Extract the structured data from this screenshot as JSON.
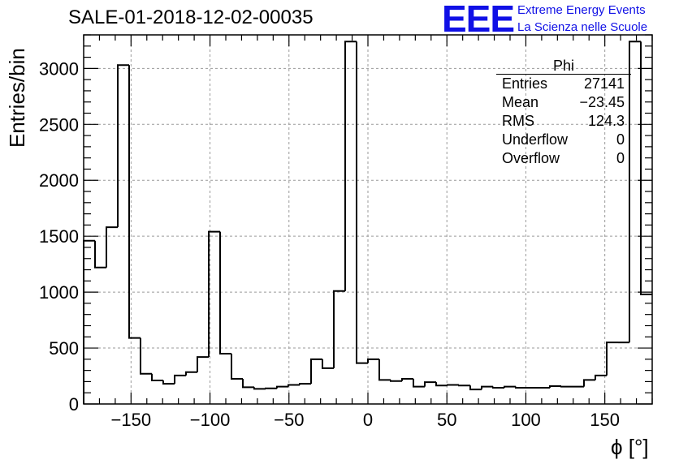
{
  "chart_data": {
    "type": "bar",
    "title": "SALE-01-2018-12-02-00035",
    "xlabel": "ϕ [°]",
    "ylabel": "Entries/bin",
    "xlim": [
      -180,
      180
    ],
    "ylim": [
      0,
      3300
    ],
    "grid": true,
    "bin_width": 7.2,
    "x_ticks": [
      -150,
      -100,
      -50,
      0,
      50,
      100,
      150
    ],
    "x_tick_labels": [
      "−150",
      "−100",
      "−50",
      "0",
      "50",
      "100",
      "150"
    ],
    "y_ticks": [
      0,
      500,
      1000,
      1500,
      2000,
      2500,
      3000
    ],
    "y_tick_labels": [
      "0",
      "500",
      "1000",
      "1500",
      "2000",
      "2500",
      "3000"
    ],
    "values": [
      1460,
      1220,
      1580,
      3030,
      590,
      270,
      210,
      180,
      255,
      285,
      420,
      1540,
      450,
      225,
      150,
      135,
      140,
      155,
      170,
      180,
      400,
      320,
      1010,
      3240,
      365,
      400,
      215,
      205,
      225,
      155,
      195,
      165,
      170,
      165,
      130,
      155,
      145,
      155,
      145,
      145,
      145,
      160,
      155,
      155,
      215,
      255,
      550,
      550,
      3240,
      980
    ],
    "stats": {
      "name": "Phi",
      "rows": [
        {
          "label": "Entries",
          "value": "27141"
        },
        {
          "label": "Mean",
          "value": "−23.45"
        },
        {
          "label": "RMS",
          "value": "124.3"
        },
        {
          "label": "Underflow",
          "value": "0"
        },
        {
          "label": "Overflow",
          "value": "0"
        }
      ]
    }
  },
  "logo": {
    "text": "EEE",
    "line1": "Extreme Energy Events",
    "line2": "La Scienza nelle Scuole",
    "color": "#1010e6"
  }
}
